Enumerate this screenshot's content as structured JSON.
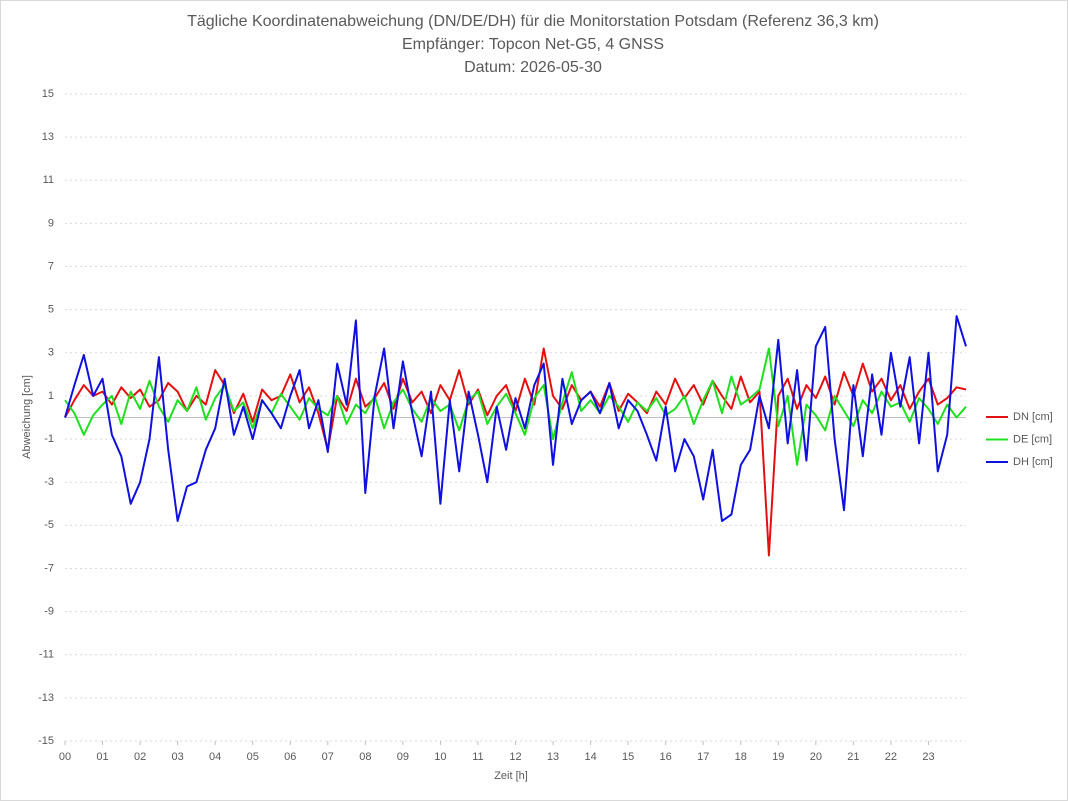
{
  "chart_data": {
    "type": "line",
    "title": "Tägliche Koordinatenabweichung (DN/DE/DH) für die Monitorstation Potsdam (Referenz 36,3 km)",
    "subtitle": "Empfänger: Topcon Net-G5, 4 GNSS",
    "date_label": "Datum: 2026-05-30",
    "x_label": "Zeit [h]",
    "y_label": "Abweichung [cm]",
    "x": [
      0,
      0.25,
      0.5,
      0.75,
      1,
      1.25,
      1.5,
      1.75,
      2,
      2.25,
      2.5,
      2.75,
      3,
      3.25,
      3.5,
      3.75,
      4,
      4.25,
      4.5,
      4.75,
      5,
      5.25,
      5.5,
      5.75,
      6,
      6.25,
      6.5,
      6.75,
      7,
      7.25,
      7.5,
      7.75,
      8,
      8.25,
      8.5,
      8.75,
      9,
      9.25,
      9.5,
      9.75,
      10,
      10.25,
      10.5,
      10.75,
      11,
      11.25,
      11.5,
      11.75,
      12,
      12.25,
      12.5,
      12.75,
      13,
      13.25,
      13.5,
      13.75,
      14,
      14.25,
      14.5,
      14.75,
      15,
      15.25,
      15.5,
      15.75,
      16,
      16.25,
      16.5,
      16.75,
      17,
      17.25,
      17.5,
      17.75,
      18,
      18.25,
      18.5,
      18.75,
      19,
      19.25,
      19.5,
      19.75,
      20,
      20.25,
      20.5,
      20.75,
      21,
      21.25,
      21.5,
      21.75,
      22,
      22.25,
      22.5,
      22.75,
      23,
      23.25,
      23.5,
      23.75,
      24
    ],
    "series": [
      {
        "name": "DN [cm]",
        "color": "#e41010",
        "values": [
          0,
          0.8,
          1.5,
          1.0,
          1.2,
          0.6,
          1.4,
          0.9,
          1.3,
          0.5,
          0.8,
          1.6,
          1.2,
          0.3,
          1.0,
          0.6,
          2.2,
          1.5,
          0.2,
          1.1,
          -0.2,
          1.3,
          0.8,
          1.0,
          2.0,
          0.7,
          1.4,
          0.2,
          -1.5,
          1.0,
          0.3,
          1.8,
          0.5,
          0.9,
          1.6,
          0.4,
          1.8,
          0.7,
          1.2,
          0.2,
          1.5,
          0.8,
          2.2,
          0.6,
          1.3,
          0.1,
          1.0,
          1.5,
          0.3,
          1.8,
          0.6,
          3.2,
          1.0,
          0.4,
          1.5,
          0.8,
          1.2,
          0.5,
          1.6,
          0.3,
          1.1,
          0.7,
          0.2,
          1.2,
          0.6,
          1.8,
          0.9,
          1.5,
          0.6,
          1.7,
          1.0,
          0.4,
          1.9,
          0.7,
          1.2,
          -6.4,
          1.0,
          1.8,
          0.4,
          1.5,
          0.9,
          1.9,
          0.6,
          2.1,
          1.0,
          2.5,
          1.2,
          1.8,
          0.8,
          1.5,
          0.4,
          1.2,
          1.8,
          0.6,
          0.9,
          1.4,
          1.3
        ]
      },
      {
        "name": "DE [cm]",
        "color": "#1ee01e",
        "values": [
          0.8,
          0.2,
          -0.8,
          0.1,
          0.6,
          1.0,
          -0.3,
          1.2,
          0.4,
          1.7,
          0.5,
          -0.2,
          0.8,
          0.3,
          1.4,
          -0.1,
          0.9,
          1.5,
          0.3,
          0.7,
          -0.5,
          0.8,
          0.2,
          1.1,
          0.5,
          -0.1,
          0.9,
          0.4,
          0.1,
          1.0,
          -0.3,
          0.6,
          0.2,
          1.0,
          -0.5,
          0.7,
          1.3,
          0.4,
          -0.2,
          0.9,
          0.3,
          0.6,
          -0.6,
          0.8,
          1.2,
          -0.3,
          0.5,
          1.1,
          0.2,
          -0.8,
          0.9,
          1.5,
          -1.0,
          0.7,
          2.1,
          0.3,
          0.8,
          0.2,
          1.0,
          0.5,
          -0.2,
          0.7,
          0.3,
          0.9,
          0.1,
          0.4,
          1.0,
          -0.3,
          0.8,
          1.7,
          0.2,
          1.9,
          0.6,
          0.9,
          1.3,
          3.2,
          -0.4,
          1.0,
          -2.2,
          0.6,
          0.1,
          -0.6,
          1.0,
          0.3,
          -0.4,
          0.8,
          0.2,
          1.2,
          0.5,
          0.7,
          -0.2,
          0.9,
          0.4,
          -0.3,
          0.6,
          0.0,
          0.5
        ]
      },
      {
        "name": "DH [cm]",
        "color": "#1010e0",
        "values": [
          0,
          1.5,
          2.9,
          1.0,
          1.8,
          -0.8,
          -1.8,
          -4.0,
          -3.0,
          -1.0,
          2.8,
          -1.5,
          -4.8,
          -3.2,
          -3.0,
          -1.5,
          -0.5,
          1.8,
          -0.8,
          0.5,
          -1.0,
          0.8,
          0.2,
          -0.5,
          1.0,
          2.2,
          -0.5,
          0.8,
          -1.6,
          2.5,
          0.6,
          4.5,
          -3.5,
          1.0,
          3.2,
          -0.5,
          2.6,
          0.2,
          -1.8,
          1.2,
          -4.0,
          0.8,
          -2.5,
          1.2,
          -0.8,
          -3.0,
          0.5,
          -1.5,
          0.9,
          -0.5,
          1.5,
          2.5,
          -2.2,
          1.8,
          -0.3,
          0.8,
          1.2,
          0.2,
          1.6,
          -0.5,
          0.8,
          0.3,
          -0.8,
          -2.0,
          0.5,
          -2.5,
          -1.0,
          -1.8,
          -3.8,
          -1.5,
          -4.8,
          -4.5,
          -2.2,
          -1.5,
          1.0,
          -0.5,
          3.6,
          -1.2,
          2.2,
          -2.0,
          3.3,
          4.2,
          -1.0,
          -4.3,
          1.5,
          -1.8,
          2.0,
          -0.8,
          3.0,
          0.5,
          2.8,
          -1.2,
          3.0,
          -2.5,
          -0.8,
          4.7,
          3.3
        ]
      }
    ],
    "xlim": [
      0,
      24
    ],
    "xticks": [
      {
        "value": 0,
        "label": "00"
      },
      {
        "value": 1,
        "label": "01"
      },
      {
        "value": 2,
        "label": "02"
      },
      {
        "value": 3,
        "label": "03"
      },
      {
        "value": 4,
        "label": "04"
      },
      {
        "value": 5,
        "label": "05"
      },
      {
        "value": 6,
        "label": "06"
      },
      {
        "value": 7,
        "label": "07"
      },
      {
        "value": 8,
        "label": "08"
      },
      {
        "value": 9,
        "label": "09"
      },
      10,
      11,
      12,
      13,
      14,
      15,
      16,
      17,
      18,
      19,
      20,
      21,
      22,
      23
    ],
    "ylim": [
      -15,
      15
    ],
    "yticks": [
      15,
      13,
      11,
      9,
      7,
      5,
      3,
      1,
      -1,
      -3,
      -5,
      -7,
      -9,
      -11,
      -13,
      -15
    ],
    "grid": true,
    "legend": "right"
  }
}
